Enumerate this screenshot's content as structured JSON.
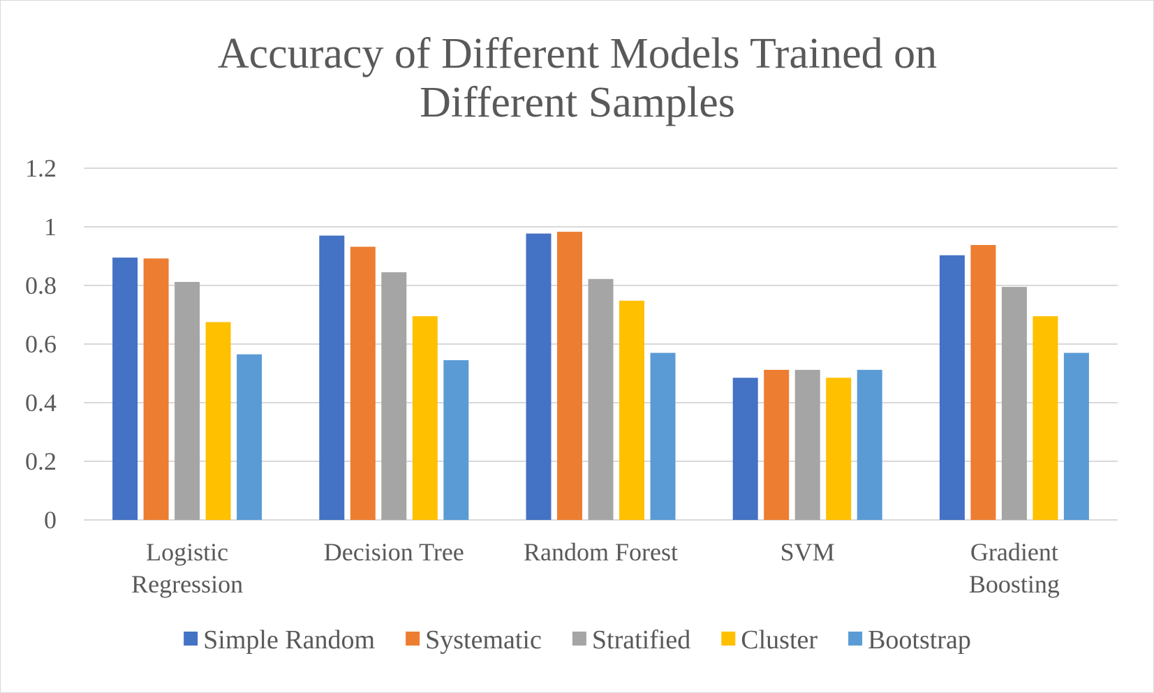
{
  "chart_data": {
    "type": "bar",
    "title": "Accuracy of Different Models Trained on Different Samples",
    "title_lines": [
      "Accuracy of Different Models Trained on",
      "Different Samples"
    ],
    "categories": [
      "Logistic Regression",
      "Decision Tree",
      "Random Forest",
      "SVM",
      "Gradient Boosting"
    ],
    "category_lines": [
      [
        "Logistic",
        "Regression"
      ],
      [
        "Decision Tree"
      ],
      [
        "Random Forest"
      ],
      [
        "SVM"
      ],
      [
        "Gradient",
        "Boosting"
      ]
    ],
    "series": [
      {
        "name": "Simple Random",
        "color": "#4472c4",
        "values": [
          0.895,
          0.97,
          0.977,
          0.485,
          0.903
        ]
      },
      {
        "name": "Systematic",
        "color": "#ed7d31",
        "values": [
          0.892,
          0.932,
          0.983,
          0.512,
          0.938
        ]
      },
      {
        "name": "Stratified",
        "color": "#a5a5a5",
        "values": [
          0.812,
          0.845,
          0.822,
          0.512,
          0.795
        ]
      },
      {
        "name": "Cluster",
        "color": "#ffc000",
        "values": [
          0.675,
          0.695,
          0.748,
          0.485,
          0.695
        ]
      },
      {
        "name": "Bootstrap",
        "color": "#5b9bd5",
        "values": [
          0.565,
          0.545,
          0.57,
          0.512,
          0.57
        ]
      }
    ],
    "yticks": [
      "0",
      "0.2",
      "0.4",
      "0.6",
      "0.8",
      "1",
      "1.2"
    ],
    "ylim": [
      0,
      1.2
    ],
    "xlabel": "",
    "ylabel": "",
    "grid": true,
    "legend_position": "bottom"
  }
}
